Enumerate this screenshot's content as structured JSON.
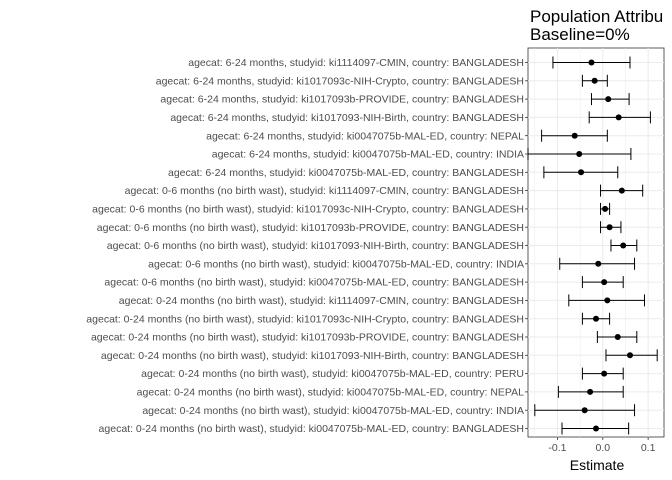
{
  "chart_data": {
    "type": "scatter",
    "subtype": "point-range (forest plot)",
    "title": "Population Attribu",
    "subtitle": "Baseline=0%",
    "xlabel": "Estimate",
    "ylabel": "",
    "xlim": [
      -0.165,
      0.135
    ],
    "xticks": [
      -0.1,
      0.0,
      0.1
    ],
    "xtick_labels": [
      "-0.1",
      "0.0",
      "0.1"
    ],
    "grid": true,
    "point_color": "#000000",
    "categories": [
      "agecat: 6-24 months, studyid: ki1114097-CMIN, country: BANGLADESH",
      "agecat: 6-24 months, studyid: ki1017093c-NIH-Crypto, country: BANGLADESH",
      "agecat: 6-24 months, studyid: ki1017093b-PROVIDE, country: BANGLADESH",
      "agecat: 6-24 months, studyid: ki1017093-NIH-Birth, country: BANGLADESH",
      "agecat: 6-24 months, studyid: ki0047075b-MAL-ED, country: NEPAL",
      "agecat: 6-24 months, studyid: ki0047075b-MAL-ED, country: INDIA",
      "agecat: 6-24 months, studyid: ki0047075b-MAL-ED, country: BANGLADESH",
      "agecat: 0-6 months (no birth wast), studyid: ki1114097-CMIN, country: BANGLADESH",
      "agecat: 0-6 months (no birth wast), studyid: ki1017093c-NIH-Crypto, country: BANGLADESH",
      "agecat: 0-6 months (no birth wast), studyid: ki1017093b-PROVIDE, country: BANGLADESH",
      "agecat: 0-6 months (no birth wast), studyid: ki1017093-NIH-Birth, country: BANGLADESH",
      "agecat: 0-6 months (no birth wast), studyid: ki0047075b-MAL-ED, country: INDIA",
      "agecat: 0-6 months (no birth wast), studyid: ki0047075b-MAL-ED, country: BANGLADESH",
      "agecat: 0-24 months (no birth wast), studyid: ki1114097-CMIN, country: BANGLADESH",
      "agecat: 0-24 months (no birth wast), studyid: ki1017093c-NIH-Crypto, country: BANGLADESH",
      "agecat: 0-24 months (no birth wast), studyid: ki1017093b-PROVIDE, country: BANGLADESH",
      "agecat: 0-24 months (no birth wast), studyid: ki1017093-NIH-Birth, country: BANGLADESH",
      "agecat: 0-24 months (no birth wast), studyid: ki0047075b-MAL-ED, country: PERU",
      "agecat: 0-24 months (no birth wast), studyid: ki0047075b-MAL-ED, country: NEPAL",
      "agecat: 0-24 months (no birth wast), studyid: ki0047075b-MAL-ED, country: INDIA",
      "agecat: 0-24 months (no birth wast), studyid: ki0047075b-MAL-ED, country: BANGLADESH"
    ],
    "estimate": [
      -0.025,
      -0.018,
      0.012,
      0.035,
      -0.062,
      -0.052,
      -0.048,
      0.042,
      0.005,
      0.015,
      0.045,
      -0.01,
      0.003,
      0.01,
      -0.015,
      0.033,
      0.06,
      0.003,
      -0.028,
      -0.04,
      -0.015
    ],
    "lower": [
      -0.11,
      -0.045,
      -0.025,
      -0.03,
      -0.135,
      -0.165,
      -0.13,
      -0.005,
      -0.005,
      -0.005,
      0.018,
      -0.095,
      -0.045,
      -0.075,
      -0.045,
      -0.012,
      0.007,
      -0.045,
      -0.098,
      -0.15,
      -0.09
    ],
    "upper": [
      0.06,
      0.01,
      0.058,
      0.105,
      0.01,
      0.062,
      0.033,
      0.088,
      0.015,
      0.04,
      0.075,
      0.07,
      0.045,
      0.092,
      0.015,
      0.075,
      0.12,
      0.045,
      0.045,
      0.07,
      0.057
    ]
  }
}
